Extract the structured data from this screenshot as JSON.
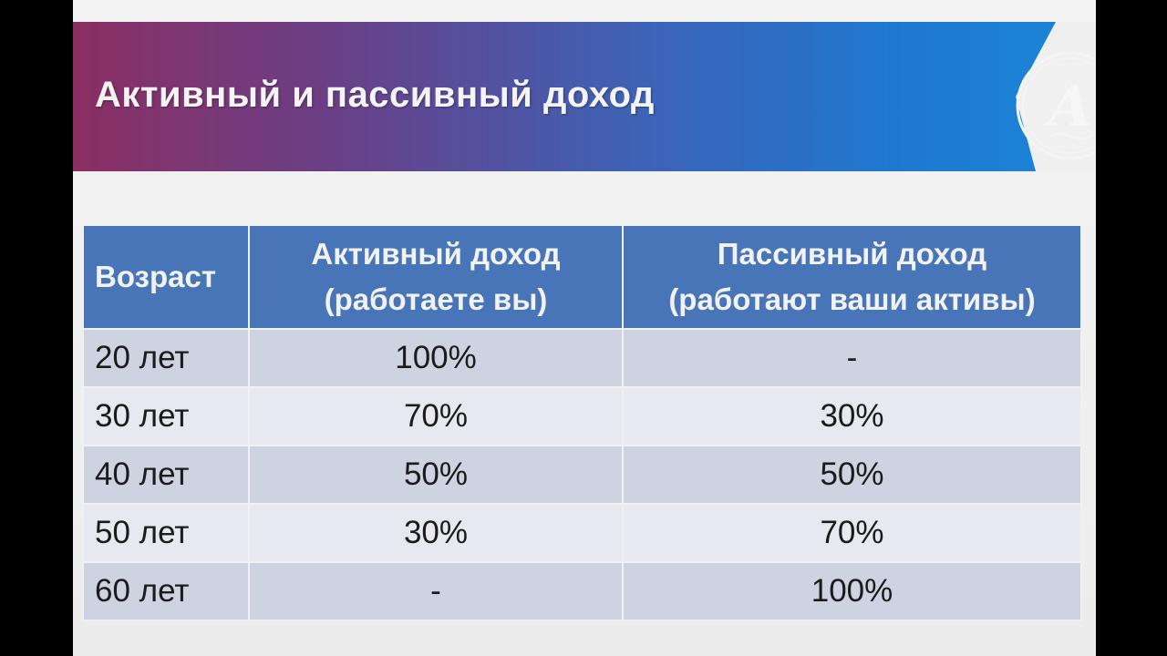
{
  "slide": {
    "title": "Активный и пассивный доход",
    "logo_icon": "ornate-letter-a-logo-icon",
    "logo_letter": "A"
  },
  "table": {
    "headers": {
      "age": "Возраст",
      "active_line1": "Активный доход",
      "active_line2": "(работаете вы)",
      "passive_line1": "Пассивный доход",
      "passive_line2": "(работают ваши активы)"
    },
    "rows": [
      {
        "age": "20 лет",
        "active": "100%",
        "passive": "-"
      },
      {
        "age": "30 лет",
        "active": "70%",
        "passive": "30%"
      },
      {
        "age": "40 лет",
        "active": "50%",
        "passive": "50%"
      },
      {
        "age": "50 лет",
        "active": "30%",
        "passive": "70%"
      },
      {
        "age": "60 лет",
        "active": "-",
        "passive": "100%"
      }
    ]
  },
  "colors": {
    "header_bg": "#4775b8",
    "row_dark": "#cdd3e1",
    "row_light": "#e7e9f0",
    "banner_start": "#8b2f63",
    "banner_end": "#1a86d8"
  }
}
